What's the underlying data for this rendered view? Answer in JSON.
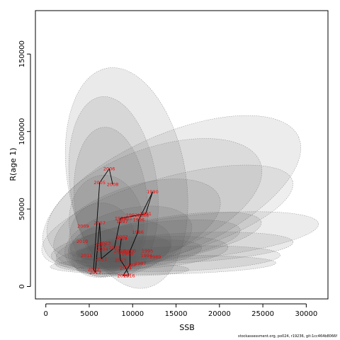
{
  "chart_data": {
    "type": "scatter",
    "xlabel": "SSB",
    "ylabel": "R(age 1)",
    "xlim": [
      -1200,
      32500
    ],
    "ylim": [
      -8000,
      178000
    ],
    "x_ticks": [
      0,
      5000,
      10000,
      15000,
      20000,
      25000,
      30000
    ],
    "y_ticks": [
      0,
      50000,
      100000,
      150000
    ],
    "point_color": "#ff0000",
    "line_color": "#000000",
    "ellipse_fill": "#555555",
    "points": [
      {
        "year": "1986",
        "x": 10600,
        "y": 35000
      },
      {
        "year": "1987",
        "x": 10900,
        "y": 15000
      },
      {
        "year": "1988",
        "x": 11200,
        "y": 46000
      },
      {
        "year": "1989",
        "x": 12600,
        "y": 19000
      },
      {
        "year": "1990",
        "x": 12300,
        "y": 61000
      },
      {
        "year": "1991",
        "x": 11500,
        "y": 47000
      },
      {
        "year": "1992",
        "x": 9900,
        "y": 46000
      },
      {
        "year": "1993",
        "x": 9700,
        "y": 14000
      },
      {
        "year": "1994",
        "x": 11600,
        "y": 20000
      },
      {
        "year": "1995",
        "x": 11700,
        "y": 23000
      },
      {
        "year": "1996",
        "x": 10700,
        "y": 43000
      },
      {
        "year": "1997",
        "x": 8800,
        "y": 42000
      },
      {
        "year": "1998",
        "x": 9400,
        "y": 21000
      },
      {
        "year": "1999",
        "x": 8600,
        "y": 44000
      },
      {
        "year": "2000",
        "x": 9700,
        "y": 23000
      },
      {
        "year": "2001",
        "x": 9300,
        "y": 44000
      },
      {
        "year": "2002",
        "x": 8800,
        "y": 32000
      },
      {
        "year": "2003",
        "x": 7900,
        "y": 25000
      },
      {
        "year": "2004",
        "x": 6500,
        "y": 24000
      },
      {
        "year": "2005",
        "x": 6200,
        "y": 67000
      },
      {
        "year": "2006",
        "x": 7300,
        "y": 76000
      },
      {
        "year": "2007",
        "x": 6200,
        "y": 41000
      },
      {
        "year": "2008",
        "x": 7700,
        "y": 66000
      },
      {
        "year": "2009",
        "x": 4300,
        "y": 39000
      },
      {
        "year": "2010",
        "x": 4200,
        "y": 29000
      },
      {
        "year": "2011",
        "x": 4700,
        "y": 20000
      },
      {
        "year": "2012",
        "x": 5500,
        "y": 11000
      },
      {
        "year": "2013",
        "x": 8600,
        "y": 17000
      },
      {
        "year": "2014",
        "x": 9200,
        "y": 12000
      },
      {
        "year": "2015",
        "x": 8900,
        "y": 7000
      },
      {
        "year": "2016",
        "x": 9600,
        "y": 7000
      },
      {
        "year": "2017",
        "x": 5700,
        "y": 9000
      },
      {
        "year": "2018",
        "x": 8500,
        "y": 23000
      },
      {
        "year": "2019",
        "x": 8700,
        "y": 31000
      },
      {
        "year": "2020",
        "x": 9000,
        "y": 22000
      },
      {
        "year": "2021",
        "x": 6400,
        "y": 18000
      },
      {
        "year": "2022",
        "x": 6300,
        "y": 27000
      },
      {
        "year": "2023",
        "x": 6800,
        "y": 28000
      }
    ],
    "path_order": [
      "2008",
      "2006",
      "2005",
      "2012",
      "2017",
      "2007",
      "2021",
      "2003",
      "1999",
      "1991",
      "1990",
      "1996",
      "1986",
      "2000",
      "1993",
      "2015",
      "2016",
      "2014",
      "2013",
      "2018",
      "2019"
    ],
    "ellipses": [
      {
        "cx": 9300,
        "cy": 70000,
        "rx": 6800,
        "ry": 72000,
        "angle": -10,
        "alpha": 0.12
      },
      {
        "cx": 14500,
        "cy": 60000,
        "rx": 16000,
        "ry": 38000,
        "angle": -24,
        "alpha": 0.11
      },
      {
        "cx": 7800,
        "cy": 65000,
        "rx": 5000,
        "ry": 58000,
        "angle": -8,
        "alpha": 0.12
      },
      {
        "cx": 12500,
        "cy": 55000,
        "rx": 13000,
        "ry": 34000,
        "angle": -20,
        "alpha": 0.11
      },
      {
        "cx": 7500,
        "cy": 55000,
        "rx": 4200,
        "ry": 48000,
        "angle": -6,
        "alpha": 0.12
      },
      {
        "cx": 14000,
        "cy": 45000,
        "rx": 15000,
        "ry": 25000,
        "angle": -16,
        "alpha": 0.1
      },
      {
        "cx": 10500,
        "cy": 40000,
        "rx": 10000,
        "ry": 25000,
        "angle": -18,
        "alpha": 0.12
      },
      {
        "cx": 17000,
        "cy": 32000,
        "rx": 14500,
        "ry": 14000,
        "angle": -6,
        "alpha": 0.11
      },
      {
        "cx": 13000,
        "cy": 30000,
        "rx": 12000,
        "ry": 14000,
        "angle": -10,
        "alpha": 0.12
      },
      {
        "cx": 11500,
        "cy": 28000,
        "rx": 11000,
        "ry": 12500,
        "angle": -8,
        "alpha": 0.12
      },
      {
        "cx": 16000,
        "cy": 25000,
        "rx": 12500,
        "ry": 9500,
        "angle": -3,
        "alpha": 0.12
      },
      {
        "cx": 9500,
        "cy": 30000,
        "rx": 7500,
        "ry": 20000,
        "angle": -14,
        "alpha": 0.12
      },
      {
        "cx": 8500,
        "cy": 25000,
        "rx": 6000,
        "ry": 18000,
        "angle": -10,
        "alpha": 0.12
      },
      {
        "cx": 15500,
        "cy": 18000,
        "rx": 11500,
        "ry": 8000,
        "angle": -2,
        "alpha": 0.13
      },
      {
        "cx": 13500,
        "cy": 14000,
        "rx": 13000,
        "ry": 6000,
        "angle": -1,
        "alpha": 0.13
      },
      {
        "cx": 10000,
        "cy": 11000,
        "rx": 6500,
        "ry": 4000,
        "angle": 0,
        "alpha": 0.14
      },
      {
        "cx": 9500,
        "cy": 20000,
        "rx": 8500,
        "ry": 9000,
        "angle": -6,
        "alpha": 0.14
      },
      {
        "cx": 6500,
        "cy": 30000,
        "rx": 3800,
        "ry": 24000,
        "angle": -6,
        "alpha": 0.12
      },
      {
        "cx": 9000,
        "cy": 22000,
        "rx": 5500,
        "ry": 10000,
        "angle": -8,
        "alpha": 0.14
      },
      {
        "cx": 7000,
        "cy": 40000,
        "rx": 4300,
        "ry": 32000,
        "angle": -7,
        "alpha": 0.11
      },
      {
        "cx": 12000,
        "cy": 22000,
        "rx": 9000,
        "ry": 10000,
        "angle": -4,
        "alpha": 0.13
      },
      {
        "cx": 6000,
        "cy": 22000,
        "rx": 3200,
        "ry": 16000,
        "angle": -5,
        "alpha": 0.13
      }
    ]
  },
  "credit": "stockassessment.org, po024, r19236, git:1cc464b8066f"
}
